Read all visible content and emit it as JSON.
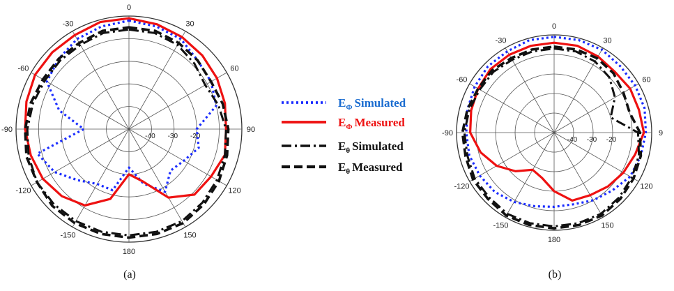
{
  "chart_data": [
    {
      "type": "polar",
      "caption": "(a)",
      "angle_ticks": [
        "0",
        "30",
        "60",
        "90",
        "120",
        "150",
        "180",
        "-150",
        "-120",
        "-90",
        "-60",
        "-30"
      ],
      "radial_ticks": [
        "-40",
        "-30",
        "-20"
      ],
      "rlim": [
        -50,
        0
      ],
      "series": [
        {
          "key": "ephi_sim",
          "color": "#1a2cff",
          "dash": "dot",
          "angles": [
            0,
            15,
            30,
            45,
            60,
            75,
            90,
            105,
            120,
            135,
            150,
            165,
            180,
            195,
            210,
            225,
            240,
            255,
            270,
            285,
            300,
            315,
            330,
            345
          ],
          "values": [
            -2,
            -3,
            -4,
            -7,
            -8,
            -10,
            -20,
            -18,
            -22,
            -24,
            -18,
            -25,
            -33,
            -22,
            -22,
            -18,
            -12,
            -8,
            -30,
            -18,
            -8,
            -6,
            -4,
            -3
          ]
        },
        {
          "key": "ephi_meas",
          "color": "#ee1111",
          "dash": "solid",
          "angles": [
            0,
            15,
            30,
            45,
            60,
            75,
            90,
            105,
            120,
            135,
            150,
            165,
            180,
            195,
            210,
            225,
            240,
            255,
            270,
            285,
            300,
            315,
            330,
            345
          ],
          "values": [
            -1,
            -2,
            -3,
            -4,
            -5,
            -6,
            -7,
            -6,
            -8,
            -9,
            -15,
            -26,
            -30,
            -18,
            -11,
            -8,
            -6,
            -5,
            -4,
            -3,
            -2,
            -2,
            -2,
            -1
          ]
        },
        {
          "key": "etheta_sim",
          "color": "#111111",
          "dash": "dashdot",
          "angles": [
            0,
            15,
            30,
            45,
            60,
            75,
            90,
            105,
            120,
            135,
            150,
            165,
            180,
            195,
            210,
            225,
            240,
            255,
            270,
            285,
            300,
            315,
            330,
            345
          ],
          "values": [
            -6,
            -6,
            -7,
            -9,
            -11,
            -9,
            -7,
            -6,
            -5,
            -4,
            -3,
            -3,
            -3,
            -3,
            -3,
            -3,
            -3,
            -4,
            -5,
            -6,
            -7,
            -7,
            -7,
            -6
          ]
        },
        {
          "key": "etheta_meas",
          "color": "#111111",
          "dash": "dash",
          "angles": [
            0,
            15,
            30,
            45,
            60,
            75,
            90,
            105,
            120,
            135,
            150,
            165,
            180,
            195,
            210,
            225,
            240,
            255,
            270,
            285,
            300,
            315,
            330,
            345
          ],
          "values": [
            -5,
            -5,
            -6,
            -7,
            -8,
            -7,
            -6,
            -5,
            -4,
            -3,
            -2,
            -2,
            -2,
            -2,
            -2,
            -2,
            -3,
            -3,
            -4,
            -5,
            -6,
            -6,
            -6,
            -5
          ]
        }
      ]
    },
    {
      "type": "polar",
      "caption": "(b)",
      "angle_ticks": [
        "0",
        "30",
        "60",
        "9",
        "120",
        "150",
        "180",
        "-150",
        "-120",
        "-90",
        "-60",
        "-30"
      ],
      "radial_ticks": [
        "-40",
        "-30",
        "-20"
      ],
      "rlim": [
        -50,
        0
      ],
      "series": [
        {
          "key": "ephi_sim",
          "color": "#1a2cff",
          "dash": "dot",
          "angles": [
            0,
            15,
            30,
            45,
            60,
            75,
            90,
            105,
            120,
            135,
            150,
            165,
            180,
            195,
            210,
            225,
            240,
            255,
            270,
            285,
            300,
            315,
            330,
            345
          ],
          "values": [
            -1,
            -1,
            -1,
            -2,
            -2,
            -2,
            -3,
            -4,
            -5,
            -8,
            -10,
            -12,
            -12,
            -11,
            -9,
            -7,
            -6,
            -5,
            -5,
            -4,
            -3,
            -2,
            -2,
            -1
          ]
        },
        {
          "key": "ephi_meas",
          "color": "#ee1111",
          "dash": "solid",
          "angles": [
            0,
            15,
            30,
            45,
            60,
            75,
            90,
            105,
            120,
            135,
            150,
            165,
            180,
            195,
            210,
            225,
            240,
            255,
            270,
            285,
            300,
            315,
            330,
            345
          ],
          "values": [
            -4,
            -4,
            -5,
            -6,
            -5,
            -5,
            -4,
            -7,
            -9,
            -11,
            -13,
            -14,
            -20,
            -26,
            -28,
            -22,
            -16,
            -11,
            -7,
            -6,
            -5,
            -4,
            -4,
            -4
          ]
        },
        {
          "key": "etheta_sim",
          "color": "#111111",
          "dash": "dashdot",
          "angles": [
            0,
            15,
            30,
            45,
            60,
            75,
            90,
            105,
            120,
            135,
            150,
            165,
            180,
            195,
            210,
            225,
            240,
            255,
            270,
            285,
            300,
            315,
            330,
            345
          ],
          "values": [
            -7,
            -7,
            -8,
            -10,
            -14,
            -20,
            -7,
            -5,
            -4,
            -3,
            -2,
            -2,
            -2,
            -2,
            -2,
            -3,
            -3,
            -4,
            -4,
            -5,
            -6,
            -6,
            -7,
            -7
          ]
        },
        {
          "key": "etheta_meas",
          "color": "#111111",
          "dash": "dash",
          "angles": [
            0,
            15,
            30,
            45,
            60,
            75,
            90,
            105,
            120,
            135,
            150,
            165,
            180,
            195,
            210,
            225,
            240,
            255,
            270,
            285,
            300,
            315,
            330,
            345
          ],
          "values": [
            -6,
            -6,
            -6,
            -7,
            -9,
            -10,
            -6,
            -4,
            -3,
            -2,
            -1,
            -1,
            -1,
            -1,
            -1,
            -2,
            -2,
            -3,
            -3,
            -4,
            -5,
            -5,
            -6,
            -6
          ]
        }
      ]
    }
  ],
  "legend": {
    "entries": [
      {
        "symbol": "E",
        "subscript": "Φ",
        "label": "Simulated",
        "color": "#1a6cd0",
        "line_color": "#1a2cff",
        "dash": "dot"
      },
      {
        "symbol": "E",
        "subscript": "Φ",
        "label": "Measured",
        "color": "#ee1111",
        "line_color": "#ee1111",
        "dash": "solid"
      },
      {
        "symbol": "E",
        "subscript": "θ",
        "label": "Simulated",
        "color": "#111111",
        "line_color": "#111111",
        "dash": "dashdot"
      },
      {
        "symbol": "E",
        "subscript": "θ",
        "label": "Measured",
        "color": "#111111",
        "line_color": "#111111",
        "dash": "dash"
      }
    ]
  }
}
